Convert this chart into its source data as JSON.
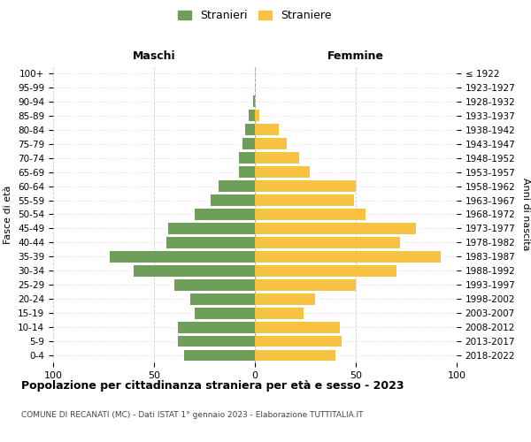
{
  "age_groups": [
    "100+",
    "95-99",
    "90-94",
    "85-89",
    "80-84",
    "75-79",
    "70-74",
    "65-69",
    "60-64",
    "55-59",
    "50-54",
    "45-49",
    "40-44",
    "35-39",
    "30-34",
    "25-29",
    "20-24",
    "15-19",
    "10-14",
    "5-9",
    "0-4"
  ],
  "birth_years": [
    "≤ 1922",
    "1923-1927",
    "1928-1932",
    "1933-1937",
    "1938-1942",
    "1943-1947",
    "1948-1952",
    "1953-1957",
    "1958-1962",
    "1963-1967",
    "1968-1972",
    "1973-1977",
    "1978-1982",
    "1983-1987",
    "1988-1992",
    "1993-1997",
    "1998-2002",
    "2003-2007",
    "2008-2012",
    "2013-2017",
    "2018-2022"
  ],
  "maschi": [
    0,
    0,
    1,
    3,
    5,
    6,
    8,
    8,
    18,
    22,
    30,
    43,
    44,
    72,
    60,
    40,
    32,
    30,
    38,
    38,
    35
  ],
  "femmine": [
    0,
    0,
    0,
    2,
    12,
    16,
    22,
    27,
    50,
    49,
    55,
    80,
    72,
    92,
    70,
    50,
    30,
    24,
    42,
    43,
    40
  ],
  "male_color": "#6f9e5a",
  "female_color": "#f5c242",
  "bar_height": 0.8,
  "xlim": [
    -100,
    100
  ],
  "xticks": [
    -100,
    -50,
    0,
    50,
    100
  ],
  "xticklabels": [
    "100",
    "50",
    "0",
    "50",
    "100"
  ],
  "title": "Popolazione per cittadinanza straniera per età e sesso - 2023",
  "subtitle": "COMUNE DI RECANATI (MC) - Dati ISTAT 1° gennaio 2023 - Elaborazione TUTTITALIA.IT",
  "ylabel_left": "Fasce di età",
  "ylabel_right": "Anni di nascita",
  "header_left": "Maschi",
  "header_right": "Femmine",
  "legend_male": "Stranieri",
  "legend_female": "Straniere",
  "grid_color": "#cccccc",
  "background_color": "#ffffff"
}
